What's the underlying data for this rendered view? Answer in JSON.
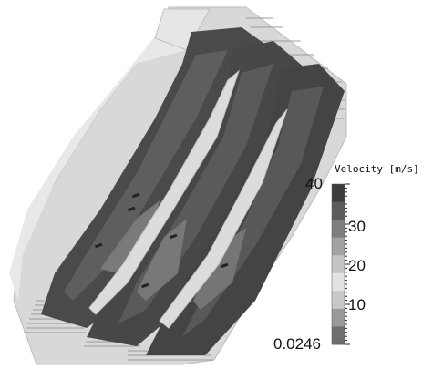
{
  "legend": {
    "title": "Velocity [m/s]",
    "max_label": "40",
    "min_label": "0.0246",
    "tick_labels": [
      "30",
      "20",
      "10"
    ],
    "band_colors": [
      "#3c3c3c",
      "#5c5c5c",
      "#7e7e7e",
      "#a2a2a2",
      "#c4c4c4",
      "#e2e2e2",
      "#c8c8c8",
      "#9a9a9a",
      "#6e6e6e"
    ]
  },
  "colors": {
    "housing": "#d9d9d9",
    "housing_edge": "#ededed",
    "channel_dark": "#4a4a4a",
    "channel_mid": "#6a6a6a",
    "stripe": "#a8a8a8"
  }
}
